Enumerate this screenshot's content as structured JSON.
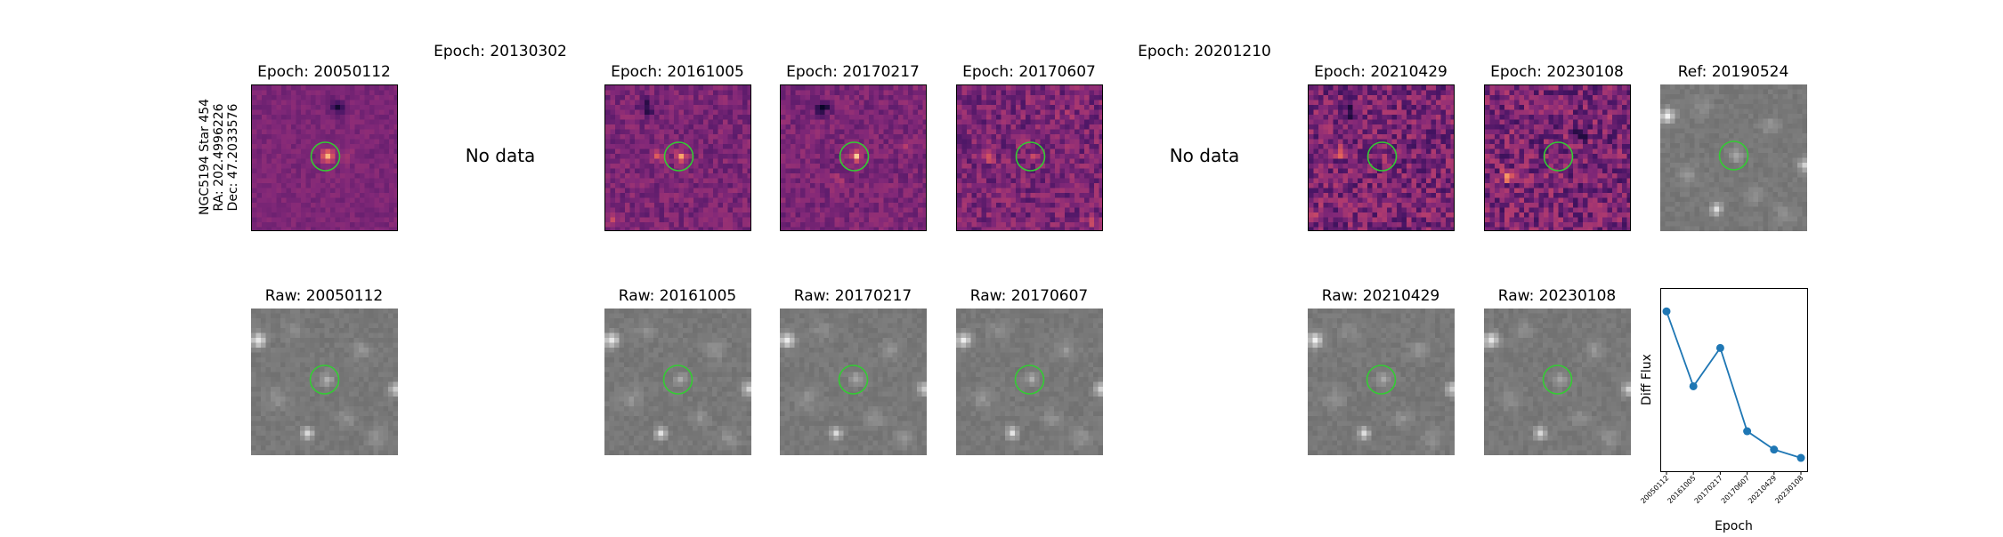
{
  "figure": {
    "ylabel_lines": [
      "NGC5194 Star 454",
      "RA: 202.4996226",
      "Dec: 47.2033576"
    ],
    "top_titles": [
      "Epoch: 20050112",
      "Epoch: 20130302",
      "Epoch: 20161005",
      "Epoch: 20170217",
      "Epoch: 20170607",
      "Epoch: 20201210",
      "Epoch: 20210429",
      "Epoch: 20230108",
      "Ref: 20190524"
    ],
    "bottom_titles": [
      "Raw: 20050112",
      "Raw: 20161005",
      "Raw: 20170217",
      "Raw: 20170607",
      "Raw: 20210429",
      "Raw: 20230108"
    ],
    "no_data_label": "No data",
    "marker_color": "#33cc33",
    "diff_cmap": "magma",
    "raw_cmap": "gray"
  },
  "chart_data": {
    "type": "line",
    "x": [
      "20050112",
      "20161005",
      "20170217",
      "20170607",
      "20210429",
      "20230108"
    ],
    "series": [
      {
        "values": [
          0.88,
          0.43,
          0.66,
          0.16,
          0.05,
          0.0
        ]
      }
    ],
    "xlabel": "Epoch",
    "ylabel": "Diff Flux",
    "ylim": [
      -0.08,
      1.02
    ],
    "color": "#1f77b4"
  }
}
